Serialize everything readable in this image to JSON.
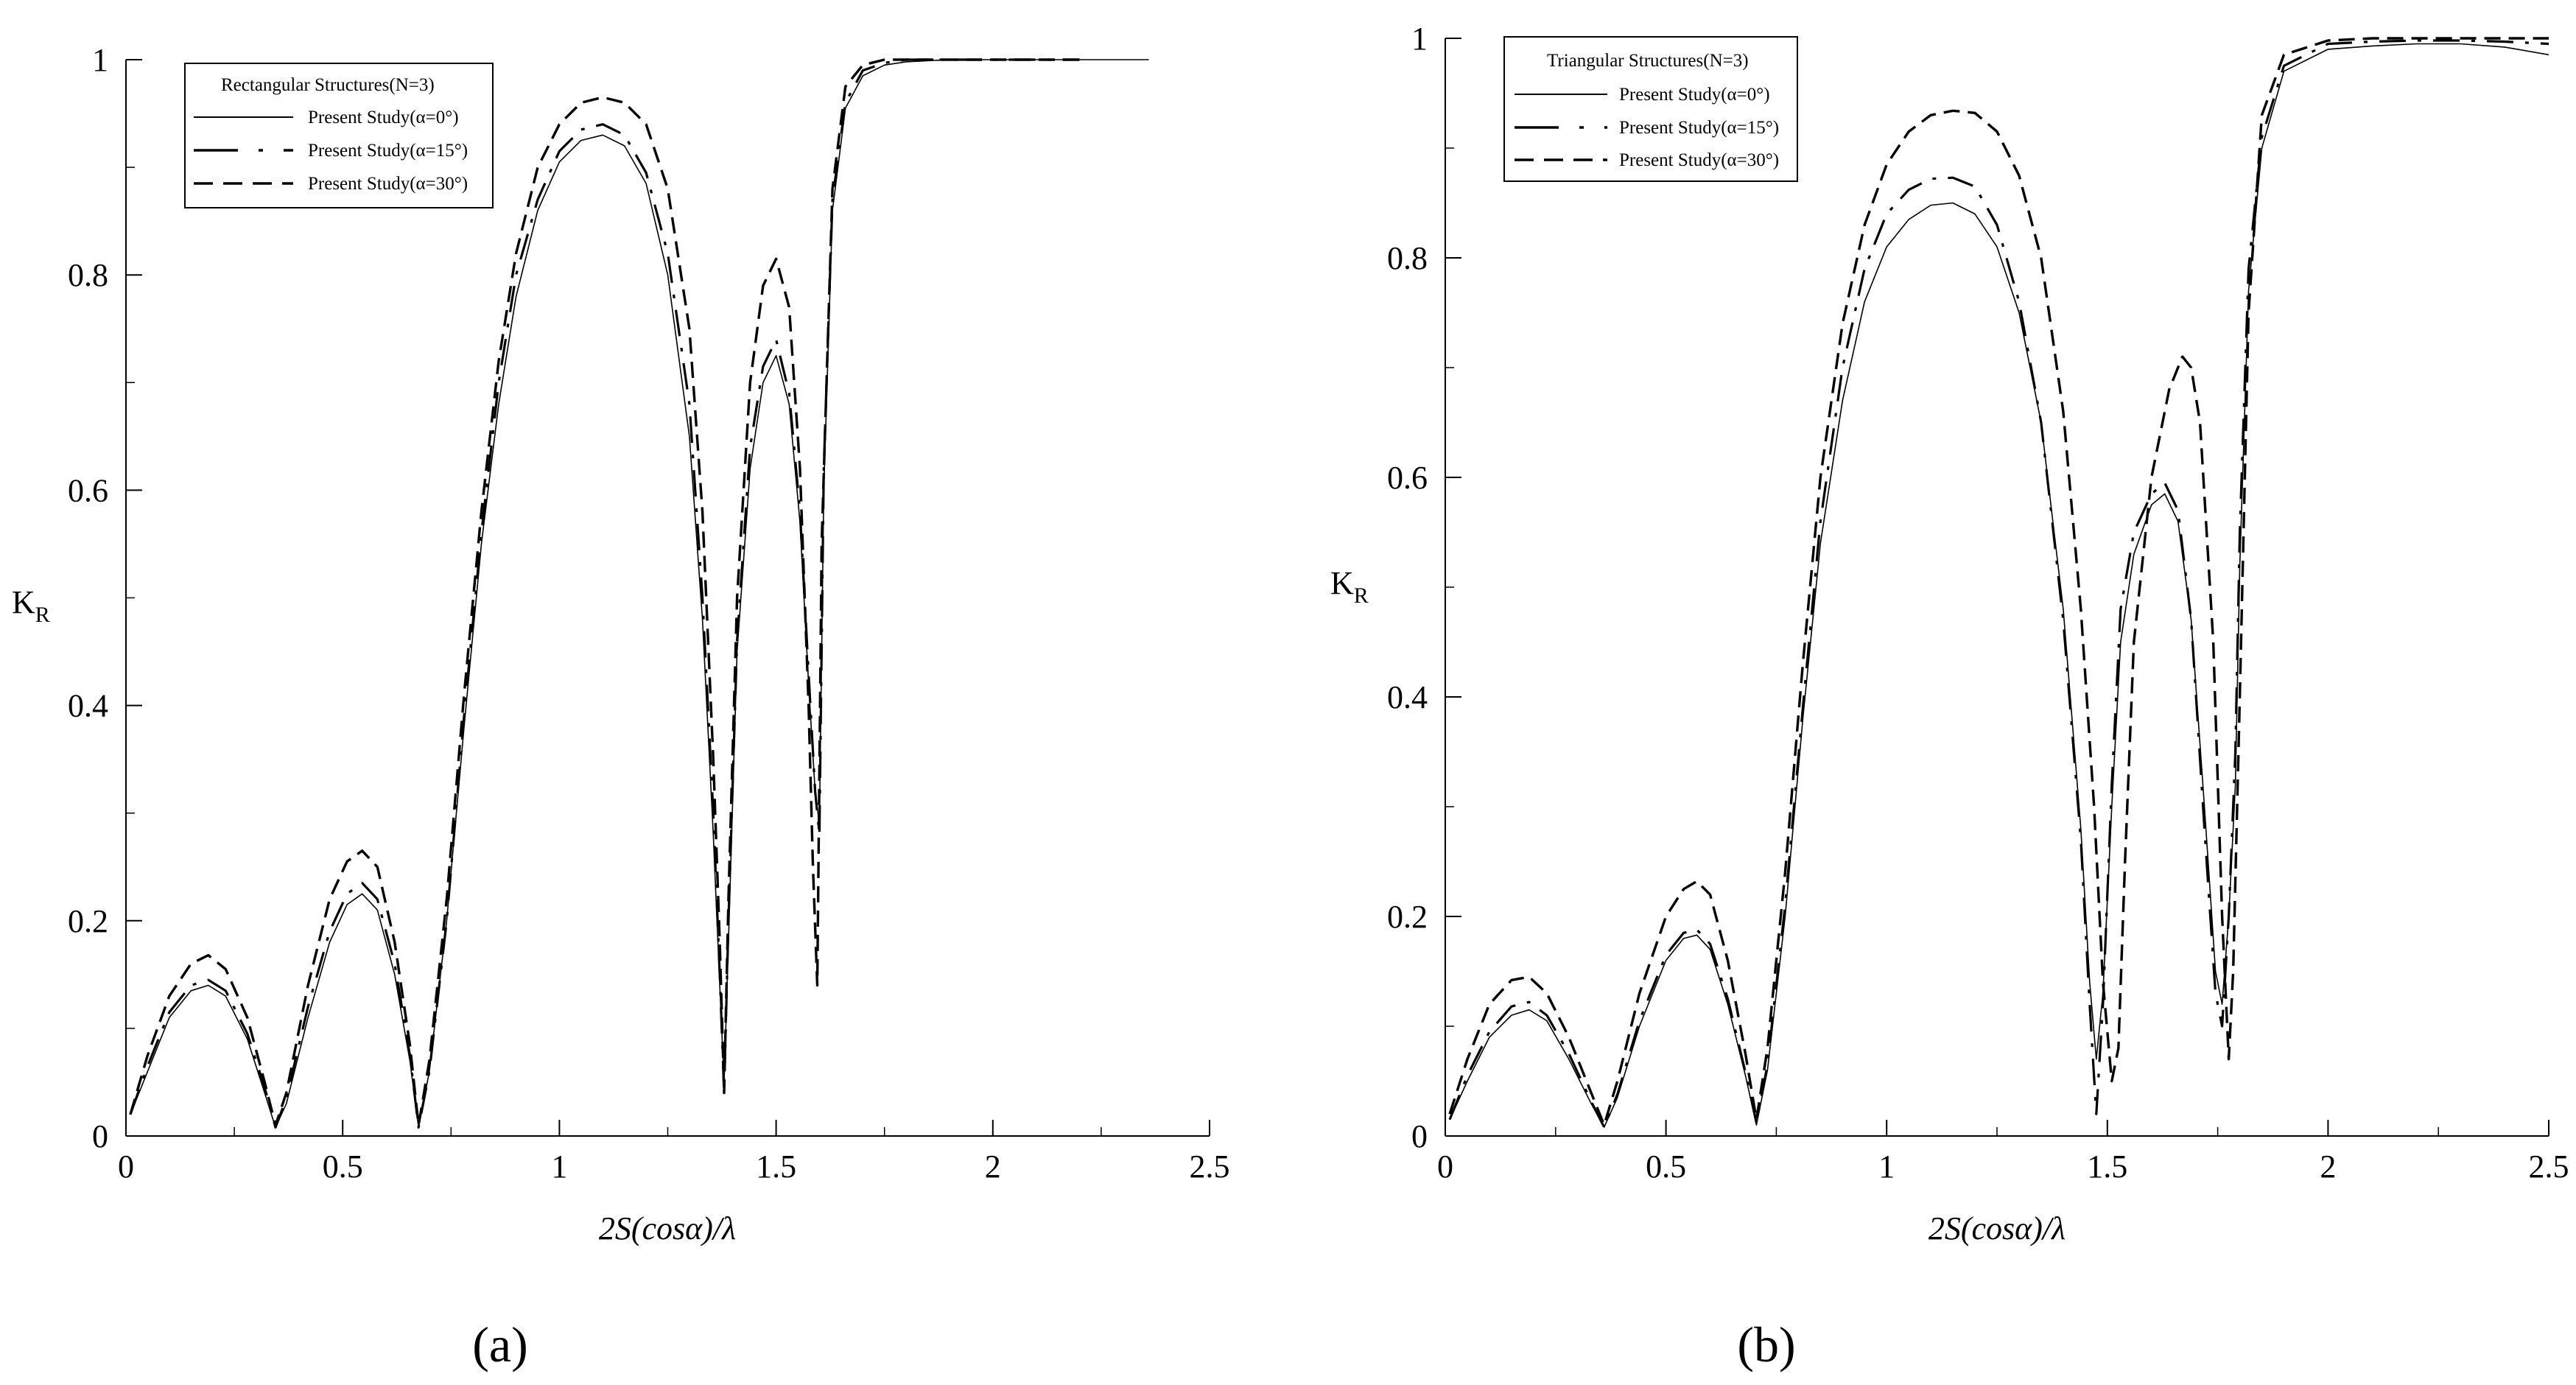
{
  "figure": {
    "panel_labels": [
      "(a)",
      "(b)"
    ]
  },
  "chart_data": [
    {
      "type": "line",
      "panel": "(a)",
      "legend_title": "Rectangular Structures(N=3)",
      "xlabel": "2S(cosα)/λ",
      "ylabel": "K_R",
      "ylabel_main": "K",
      "ylabel_sub": "R",
      "xlim": [
        0,
        2.5
      ],
      "ylim": [
        0,
        1
      ],
      "xticks": [
        0,
        0.5,
        1,
        1.5,
        2,
        2.5
      ],
      "xtick_labels": [
        "0",
        "0.5",
        "1",
        "1.5",
        "2",
        "2.5"
      ],
      "yticks": [
        0,
        0.2,
        0.4,
        0.6,
        0.8,
        1
      ],
      "ytick_labels": [
        "0",
        "0.2",
        "0.4",
        "0.6",
        "0.8",
        "1"
      ],
      "grid": false,
      "legend_position": "top-left",
      "series": [
        {
          "name": "Present Study(α=0°)",
          "style": "solid",
          "x": [
            0.01,
            0.05,
            0.1,
            0.15,
            0.19,
            0.23,
            0.28,
            0.32,
            0.345,
            0.37,
            0.42,
            0.47,
            0.51,
            0.545,
            0.58,
            0.62,
            0.655,
            0.675,
            0.7,
            0.74,
            0.78,
            0.82,
            0.86,
            0.9,
            0.95,
            1.0,
            1.05,
            1.1,
            1.15,
            1.2,
            1.25,
            1.3,
            1.33,
            1.355,
            1.37,
            1.38,
            1.39,
            1.41,
            1.44,
            1.47,
            1.5,
            1.53,
            1.555,
            1.575,
            1.59,
            1.6,
            1.61,
            1.63,
            1.66,
            1.7,
            1.75,
            1.8,
            1.9,
            2.0,
            2.1,
            2.2,
            2.36
          ],
          "y": [
            0.02,
            0.06,
            0.11,
            0.135,
            0.14,
            0.13,
            0.09,
            0.04,
            0.008,
            0.03,
            0.11,
            0.18,
            0.215,
            0.225,
            0.21,
            0.15,
            0.07,
            0.008,
            0.06,
            0.2,
            0.38,
            0.55,
            0.68,
            0.78,
            0.86,
            0.905,
            0.925,
            0.93,
            0.92,
            0.885,
            0.8,
            0.65,
            0.48,
            0.28,
            0.14,
            0.05,
            0.18,
            0.45,
            0.62,
            0.7,
            0.725,
            0.68,
            0.57,
            0.42,
            0.32,
            0.29,
            0.6,
            0.86,
            0.955,
            0.985,
            0.995,
            0.998,
            1.0,
            1.0,
            1.0,
            1.0,
            1.0
          ]
        },
        {
          "name": "Present Study(α=15°)",
          "style": "dashdot",
          "x": [
            0.01,
            0.05,
            0.1,
            0.15,
            0.19,
            0.23,
            0.28,
            0.32,
            0.345,
            0.37,
            0.42,
            0.47,
            0.51,
            0.545,
            0.58,
            0.62,
            0.655,
            0.675,
            0.7,
            0.74,
            0.78,
            0.82,
            0.86,
            0.9,
            0.95,
            1.0,
            1.05,
            1.1,
            1.15,
            1.2,
            1.25,
            1.3,
            1.33,
            1.355,
            1.37,
            1.38,
            1.39,
            1.41,
            1.44,
            1.47,
            1.5,
            1.53,
            1.555,
            1.575,
            1.59,
            1.6,
            1.61,
            1.63,
            1.66,
            1.7,
            1.75,
            1.8,
            1.9,
            2.0,
            2.1,
            2.2
          ],
          "y": [
            0.02,
            0.065,
            0.115,
            0.14,
            0.145,
            0.135,
            0.095,
            0.045,
            0.008,
            0.035,
            0.12,
            0.19,
            0.225,
            0.235,
            0.22,
            0.16,
            0.075,
            0.008,
            0.06,
            0.2,
            0.39,
            0.56,
            0.7,
            0.8,
            0.87,
            0.915,
            0.935,
            0.94,
            0.93,
            0.895,
            0.82,
            0.68,
            0.5,
            0.3,
            0.15,
            0.04,
            0.2,
            0.46,
            0.64,
            0.715,
            0.74,
            0.69,
            0.58,
            0.43,
            0.32,
            0.28,
            0.62,
            0.87,
            0.96,
            0.99,
            0.997,
            1.0,
            1.0,
            1.0,
            1.0,
            1.0
          ]
        },
        {
          "name": "Present Study(α=30°)",
          "style": "dashed",
          "x": [
            0.01,
            0.05,
            0.1,
            0.15,
            0.19,
            0.23,
            0.28,
            0.32,
            0.345,
            0.37,
            0.42,
            0.47,
            0.51,
            0.545,
            0.58,
            0.62,
            0.655,
            0.675,
            0.7,
            0.74,
            0.78,
            0.82,
            0.86,
            0.9,
            0.95,
            1.0,
            1.05,
            1.1,
            1.15,
            1.2,
            1.25,
            1.3,
            1.33,
            1.355,
            1.37,
            1.38,
            1.39,
            1.41,
            1.44,
            1.47,
            1.5,
            1.53,
            1.555,
            1.575,
            1.585,
            1.595,
            1.605,
            1.63,
            1.66,
            1.7,
            1.75,
            1.8,
            1.9,
            2.0,
            2.1,
            2.2
          ],
          "y": [
            0.02,
            0.075,
            0.13,
            0.16,
            0.168,
            0.155,
            0.11,
            0.05,
            0.01,
            0.04,
            0.14,
            0.22,
            0.255,
            0.265,
            0.25,
            0.18,
            0.085,
            0.01,
            0.07,
            0.22,
            0.41,
            0.58,
            0.72,
            0.82,
            0.9,
            0.94,
            0.96,
            0.965,
            0.96,
            0.94,
            0.88,
            0.75,
            0.58,
            0.35,
            0.18,
            0.04,
            0.22,
            0.5,
            0.7,
            0.79,
            0.815,
            0.77,
            0.62,
            0.4,
            0.25,
            0.14,
            0.55,
            0.88,
            0.975,
            0.995,
            1.0,
            1.0,
            1.0,
            1.0,
            1.0,
            1.0
          ]
        }
      ]
    },
    {
      "type": "line",
      "panel": "(b)",
      "legend_title": "Triangular Structures(N=3)",
      "xlabel": "2S(cosα)/λ",
      "ylabel": "K_R",
      "ylabel_main": "K",
      "ylabel_sub": "R",
      "xlim": [
        0,
        2.5
      ],
      "ylim": [
        0,
        1
      ],
      "xticks": [
        0,
        0.5,
        1,
        1.5,
        2,
        2.5
      ],
      "xtick_labels": [
        "0",
        "0.5",
        "1",
        "1.5",
        "2",
        "2.5"
      ],
      "yticks": [
        0,
        0.2,
        0.4,
        0.6,
        0.8,
        1
      ],
      "ytick_labels": [
        "0",
        "0.2",
        "0.4",
        "0.6",
        "0.8",
        "1"
      ],
      "grid": false,
      "legend_position": "top-left",
      "series": [
        {
          "name": "Present Study(α=0°)",
          "style": "solid",
          "x": [
            0.01,
            0.05,
            0.1,
            0.15,
            0.19,
            0.23,
            0.28,
            0.33,
            0.36,
            0.39,
            0.44,
            0.5,
            0.54,
            0.57,
            0.6,
            0.64,
            0.68,
            0.705,
            0.73,
            0.77,
            0.81,
            0.85,
            0.9,
            0.95,
            1.0,
            1.05,
            1.1,
            1.15,
            1.2,
            1.25,
            1.3,
            1.35,
            1.4,
            1.44,
            1.46,
            1.475,
            1.49,
            1.51,
            1.53,
            1.56,
            1.6,
            1.63,
            1.66,
            1.69,
            1.72,
            1.745,
            1.76,
            1.775,
            1.79,
            1.8,
            1.82,
            1.85,
            1.9,
            2.0,
            2.1,
            2.2,
            2.3,
            2.4,
            2.5
          ],
          "y": [
            0.015,
            0.05,
            0.09,
            0.11,
            0.115,
            0.105,
            0.07,
            0.03,
            0.008,
            0.035,
            0.1,
            0.16,
            0.18,
            0.183,
            0.17,
            0.12,
            0.055,
            0.01,
            0.06,
            0.2,
            0.38,
            0.54,
            0.67,
            0.76,
            0.81,
            0.835,
            0.848,
            0.85,
            0.84,
            0.81,
            0.75,
            0.65,
            0.48,
            0.28,
            0.14,
            0.07,
            0.13,
            0.3,
            0.45,
            0.53,
            0.575,
            0.585,
            0.56,
            0.47,
            0.3,
            0.15,
            0.12,
            0.2,
            0.32,
            0.52,
            0.77,
            0.9,
            0.97,
            0.99,
            0.993,
            0.995,
            0.995,
            0.992,
            0.985
          ]
        },
        {
          "name": "Present Study(α=15°)",
          "style": "dashdot",
          "x": [
            0.01,
            0.05,
            0.1,
            0.15,
            0.19,
            0.23,
            0.28,
            0.33,
            0.36,
            0.39,
            0.44,
            0.5,
            0.54,
            0.57,
            0.6,
            0.64,
            0.68,
            0.705,
            0.73,
            0.77,
            0.81,
            0.85,
            0.9,
            0.95,
            1.0,
            1.05,
            1.1,
            1.15,
            1.2,
            1.25,
            1.3,
            1.35,
            1.4,
            1.44,
            1.46,
            1.475,
            1.49,
            1.51,
            1.53,
            1.56,
            1.6,
            1.63,
            1.66,
            1.69,
            1.72,
            1.745,
            1.76,
            1.775,
            1.79,
            1.8,
            1.82,
            1.85,
            1.9,
            2.0,
            2.1,
            2.2,
            2.3,
            2.4,
            2.5
          ],
          "y": [
            0.015,
            0.055,
            0.095,
            0.118,
            0.122,
            0.11,
            0.075,
            0.032,
            0.008,
            0.038,
            0.105,
            0.165,
            0.185,
            0.188,
            0.175,
            0.125,
            0.058,
            0.012,
            0.065,
            0.21,
            0.39,
            0.56,
            0.7,
            0.79,
            0.84,
            0.862,
            0.872,
            0.873,
            0.865,
            0.83,
            0.76,
            0.65,
            0.47,
            0.27,
            0.12,
            0.02,
            0.12,
            0.32,
            0.48,
            0.55,
            0.585,
            0.595,
            0.57,
            0.47,
            0.28,
            0.13,
            0.1,
            0.2,
            0.35,
            0.55,
            0.79,
            0.91,
            0.975,
            0.995,
            0.997,
            0.998,
            0.998,
            0.997,
            0.995
          ]
        },
        {
          "name": "Present Study(α=30°)",
          "style": "dashed",
          "x": [
            0.01,
            0.05,
            0.1,
            0.15,
            0.19,
            0.23,
            0.28,
            0.33,
            0.36,
            0.39,
            0.44,
            0.5,
            0.54,
            0.57,
            0.6,
            0.64,
            0.68,
            0.705,
            0.73,
            0.77,
            0.81,
            0.85,
            0.9,
            0.95,
            1.0,
            1.05,
            1.1,
            1.15,
            1.2,
            1.25,
            1.3,
            1.35,
            1.4,
            1.44,
            1.47,
            1.49,
            1.51,
            1.525,
            1.54,
            1.56,
            1.6,
            1.64,
            1.67,
            1.69,
            1.71,
            1.74,
            1.76,
            1.775,
            1.785,
            1.8,
            1.82,
            1.85,
            1.9,
            2.0,
            2.1,
            2.2,
            2.3,
            2.4,
            2.5
          ],
          "y": [
            0.02,
            0.07,
            0.12,
            0.142,
            0.145,
            0.13,
            0.09,
            0.04,
            0.01,
            0.05,
            0.13,
            0.2,
            0.225,
            0.232,
            0.22,
            0.16,
            0.075,
            0.015,
            0.08,
            0.24,
            0.43,
            0.6,
            0.74,
            0.83,
            0.885,
            0.915,
            0.93,
            0.934,
            0.932,
            0.915,
            0.875,
            0.8,
            0.66,
            0.48,
            0.3,
            0.14,
            0.05,
            0.08,
            0.25,
            0.45,
            0.6,
            0.68,
            0.71,
            0.7,
            0.65,
            0.45,
            0.2,
            0.07,
            0.15,
            0.4,
            0.75,
            0.93,
            0.985,
            0.998,
            1.0,
            1.0,
            1.0,
            1.0,
            1.0
          ]
        }
      ]
    }
  ]
}
